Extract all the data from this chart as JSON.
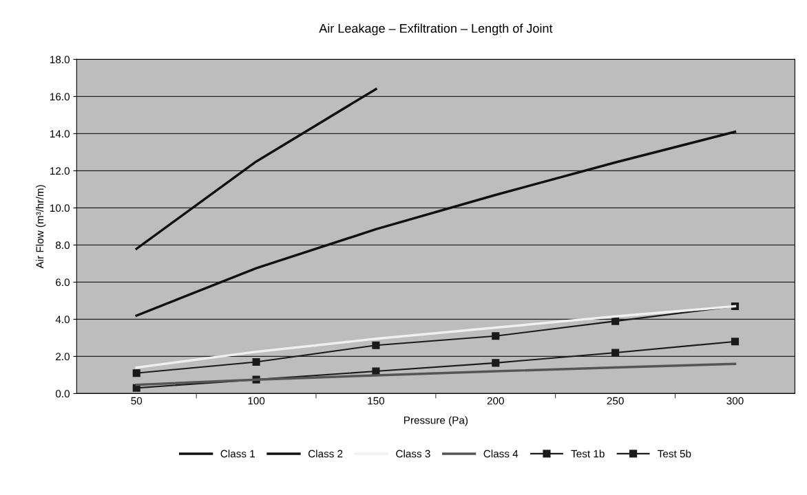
{
  "chart_data": {
    "type": "line",
    "title": "Air Leakage – Exfiltration – Length of Joint",
    "xlabel": "Pressure (Pa)",
    "ylabel": "Air Flow (m³/hr/m)",
    "categories": [
      "50",
      "100",
      "150",
      "200",
      "250",
      "300"
    ],
    "ylim": [
      0,
      18
    ],
    "yticks": [
      {
        "value": 0,
        "label": "0.0"
      },
      {
        "value": 2,
        "label": "2.0"
      },
      {
        "value": 4,
        "label": "4.0"
      },
      {
        "value": 6,
        "label": "6.0"
      },
      {
        "value": 8,
        "label": "8.0"
      },
      {
        "value": 10,
        "label": "10.0"
      },
      {
        "value": 12,
        "label": "12.0"
      },
      {
        "value": 14,
        "label": "14.0"
      },
      {
        "value": 16,
        "label": "16.0"
      },
      {
        "value": 18,
        "label": "18.0"
      }
    ],
    "grid": "y",
    "legend": "bottom",
    "line_style": "solid",
    "series": [
      {
        "name": "Class 1",
        "color": "#111111",
        "marker": "none",
        "values": [
          7.8,
          12.5,
          16.4,
          null,
          null,
          null
        ]
      },
      {
        "name": "Class 2",
        "color": "#111111",
        "marker": "none",
        "values": [
          4.2,
          6.75,
          8.85,
          10.7,
          12.45,
          14.1
        ]
      },
      {
        "name": "Class 3",
        "color": "#f0f0f0",
        "marker": "none",
        "values": [
          1.4,
          2.25,
          2.95,
          3.55,
          4.15,
          4.7
        ]
      },
      {
        "name": "Class 4",
        "color": "#555555",
        "marker": "none",
        "values": [
          0.47,
          0.75,
          0.98,
          1.2,
          1.4,
          1.6
        ]
      },
      {
        "name": "Test 1b",
        "color": "#1a1a1a",
        "marker": "square",
        "values": [
          1.1,
          1.7,
          2.6,
          3.1,
          3.9,
          4.7
        ]
      },
      {
        "name": "Test 5b",
        "color": "#1a1a1a",
        "marker": "square",
        "values": [
          0.3,
          0.75,
          1.2,
          1.65,
          2.2,
          2.8
        ]
      }
    ]
  }
}
